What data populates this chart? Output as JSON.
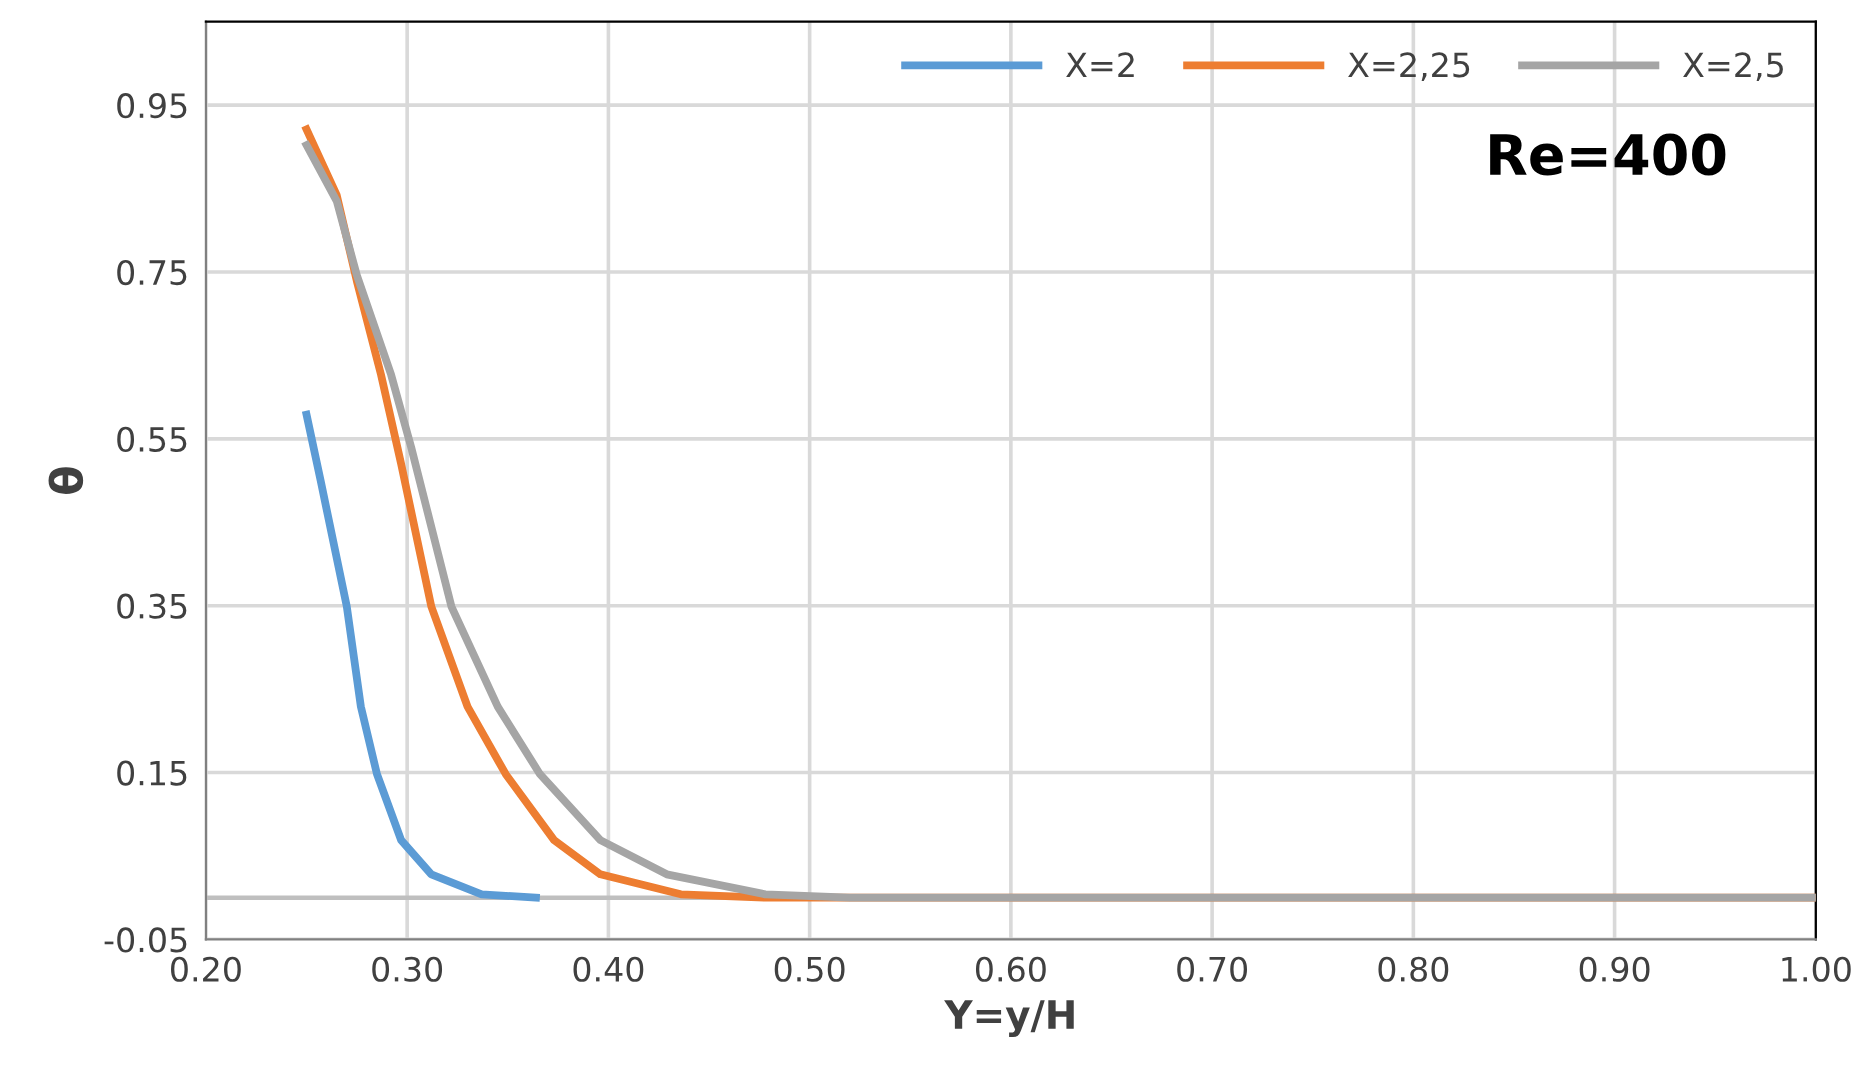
{
  "chart_data": {
    "type": "line",
    "xlabel": "Y=y/H",
    "ylabel": "θ",
    "annotations": [
      "Re=400"
    ],
    "xlim": [
      0.2,
      1.0
    ],
    "xticks": [
      {
        "value": 0.2,
        "label": "0.20"
      },
      {
        "value": 0.3,
        "label": "0.30"
      },
      {
        "value": 0.4,
        "label": "0.40"
      },
      {
        "value": 0.5,
        "label": "0.50"
      },
      {
        "value": 0.6,
        "label": "0.60"
      },
      {
        "value": 0.7,
        "label": "0.70"
      },
      {
        "value": 0.8,
        "label": "0.80"
      },
      {
        "value": 0.9,
        "label": "0.90"
      },
      {
        "value": 1.0,
        "label": "1.00"
      }
    ],
    "ylim": [
      -0.05,
      1.05
    ],
    "yticks": [
      -0.05,
      0.15,
      0.35,
      0.55,
      0.75,
      0.95
    ],
    "ref_lines": [
      {
        "axis": "y",
        "value": 0,
        "color": "#bfbfbf"
      }
    ],
    "grid": true,
    "legend": "top right",
    "marker": "none",
    "line_style": "solid",
    "series": [
      {
        "name": "X=2",
        "color": "#5b9bd5",
        "x": [
          0.25,
          0.257,
          0.27,
          0.277,
          0.285,
          0.297,
          0.312,
          0.337,
          0.364
        ],
        "values": [
          0.579,
          0.5,
          0.349,
          0.229,
          0.148,
          0.069,
          0.028,
          0.004,
          0.0
        ]
      },
      {
        "name": "X=2,25",
        "color": "#ed7d31",
        "x": [
          0.25,
          0.265,
          0.275,
          0.287,
          0.297,
          0.312,
          0.33,
          0.349,
          0.373,
          0.396,
          0.436,
          0.478,
          1.0
        ],
        "values": [
          0.921,
          0.842,
          0.739,
          0.627,
          0.52,
          0.349,
          0.229,
          0.148,
          0.069,
          0.028,
          0.004,
          0.0,
          0.0
        ]
      },
      {
        "name": "X=2,5",
        "color": "#a5a5a5",
        "x": [
          0.25,
          0.265,
          0.275,
          0.292,
          0.302,
          0.322,
          0.345,
          0.366,
          0.396,
          0.429,
          0.478,
          0.52,
          1.0
        ],
        "values": [
          0.902,
          0.835,
          0.746,
          0.627,
          0.54,
          0.349,
          0.229,
          0.148,
          0.069,
          0.028,
          0.004,
          0.0,
          0.0
        ]
      }
    ]
  }
}
